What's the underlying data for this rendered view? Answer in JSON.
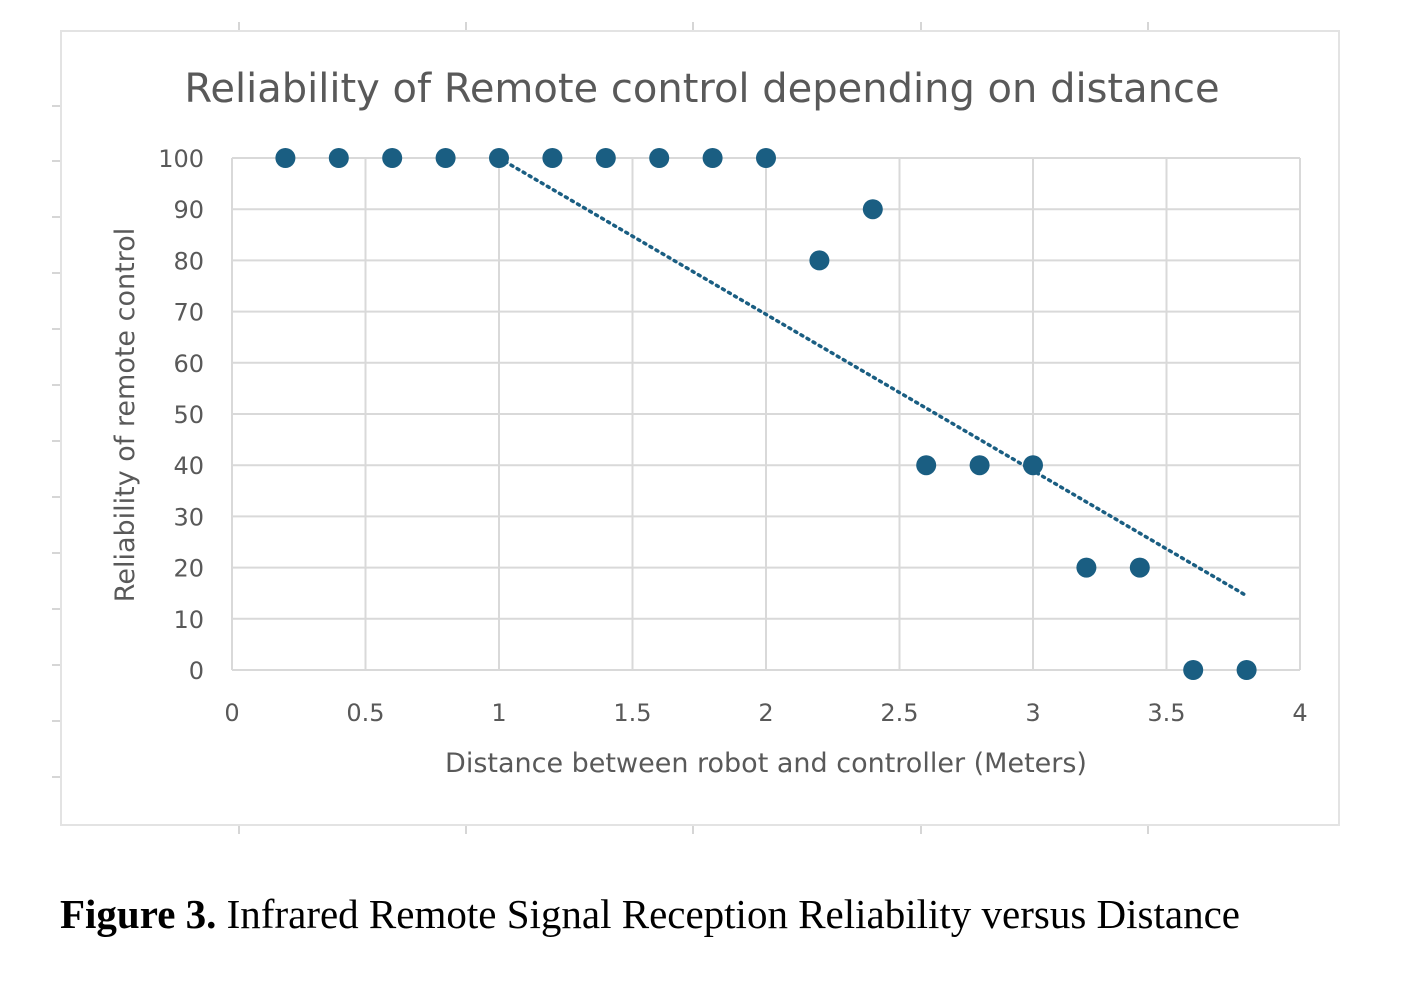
{
  "chart_data": {
    "type": "scatter",
    "title": "Reliability of Remote control depending on distance",
    "xlabel": "Distance between robot and controller (Meters)",
    "ylabel": "Reliability of remote control",
    "xlim": [
      0,
      4
    ],
    "ylim": [
      0,
      100
    ],
    "x_ticks": [
      "0",
      "0.5",
      "1",
      "1.5",
      "2",
      "2.5",
      "3",
      "3.5",
      "4"
    ],
    "y_ticks": [
      "0",
      "10",
      "20",
      "30",
      "40",
      "50",
      "60",
      "70",
      "80",
      "90",
      "100"
    ],
    "grid": true,
    "legend": "none",
    "series": [
      {
        "x": [
          0.2,
          0.4,
          0.6,
          0.8,
          1.0,
          1.2,
          1.4,
          1.6,
          1.8,
          2.0,
          2.2,
          2.4,
          2.6,
          2.8,
          3.0,
          3.2,
          3.4,
          3.6,
          3.8
        ],
        "y": [
          100,
          100,
          100,
          100,
          100,
          100,
          100,
          100,
          100,
          100,
          80,
          90,
          40,
          40,
          40,
          20,
          20,
          0,
          0
        ],
        "color": "#1a5e82"
      }
    ],
    "trendline": {
      "style": "dotted",
      "color": "#1a5e82",
      "x": [
        1.0,
        3.8
      ],
      "y": [
        100,
        14.5
      ]
    }
  },
  "caption": {
    "label": "Figure 3.",
    "text": " Infrared Remote Signal Reception Reliability versus Distance"
  }
}
